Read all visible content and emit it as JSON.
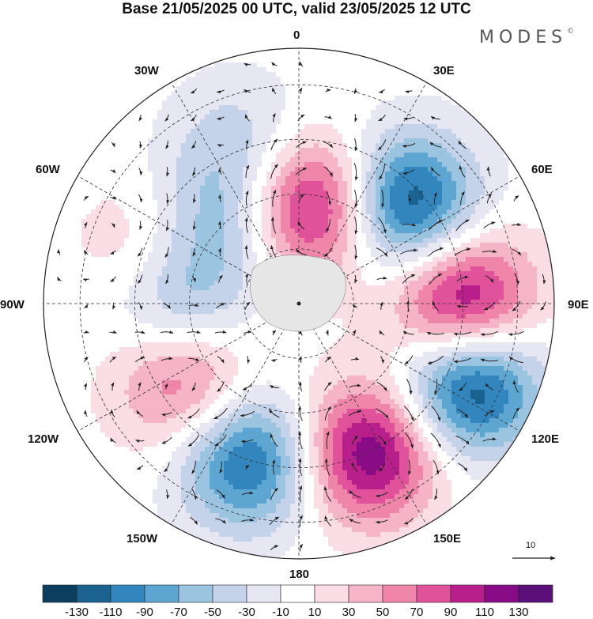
{
  "title": "Base 21/05/2025 00 UTC, valid 23/05/2025 12 UTC",
  "brand": {
    "text": "MODES",
    "mark": "©"
  },
  "longitude_labels": {
    "lon0": "0",
    "lon30e": "30E",
    "lon60e": "60E",
    "lon90e": "90E",
    "lon120e": "120E",
    "lon150e": "150E",
    "lon180": "180",
    "lon150w": "150W",
    "lon120w": "120W",
    "lon90w": "90W",
    "lon60w": "60W",
    "lon30w": "30W"
  },
  "reference_vector": {
    "value": "10"
  },
  "colorbar": {
    "colors": [
      "#0c3f5e",
      "#1a6391",
      "#3286bd",
      "#5ea6d2",
      "#9bc4e1",
      "#c5d3ea",
      "#e7e7f4",
      "#ffffff",
      "#fbdde6",
      "#f6b4c8",
      "#ef86aa",
      "#e0529a",
      "#b81f8b",
      "#880c85",
      "#5a0f79"
    ],
    "ticks": [
      "-130",
      "-110",
      "-90",
      "-70",
      "-50",
      "-30",
      "-10",
      "10",
      "30",
      "50",
      "70",
      "90",
      "110",
      "130"
    ]
  },
  "anomaly_centers": [
    {
      "lon": 10,
      "lat": 63,
      "value": 125
    },
    {
      "lon": 47,
      "lat": 50,
      "value": -140
    },
    {
      "lon": 90,
      "lat": 45,
      "value": 135
    },
    {
      "lon": 115,
      "lat": 38,
      "value": -145
    },
    {
      "lon": 155,
      "lat": 45,
      "value": 130
    },
    {
      "lon": -162,
      "lat": 45,
      "value": -120
    },
    {
      "lon": -125,
      "lat": 52,
      "value": 80
    },
    {
      "lon": -88,
      "lat": 57,
      "value": -70
    },
    {
      "lon": -70,
      "lat": 47,
      "value": 45
    },
    {
      "lon": -45,
      "lat": 58,
      "value": -60
    },
    {
      "lon": -20,
      "lat": 43,
      "value": -40
    }
  ]
}
